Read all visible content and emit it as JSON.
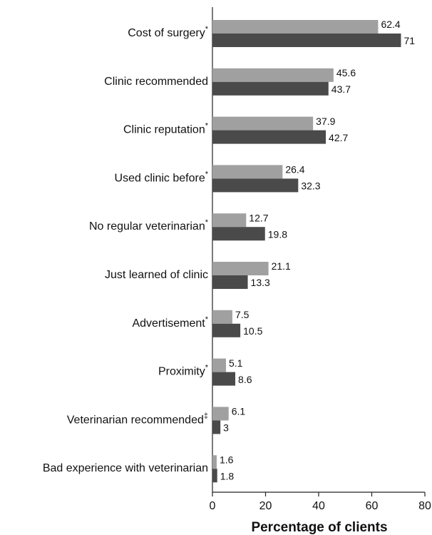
{
  "chart_data": {
    "type": "hbar",
    "categories": [
      "Cost of surgery",
      "Clinic recommended",
      "Clinic reputation",
      "Used clinic before",
      "No regular veterinarian",
      "Just learned of clinic",
      "Advertisement",
      "Proximity",
      "Veterinarian recommended",
      "Bad experience with veterinarian"
    ],
    "category_marks": [
      "*",
      null,
      "*",
      "*",
      "*",
      null,
      "*",
      "*",
      "‡",
      null
    ],
    "series": [
      {
        "color": "#a0a0a0",
        "values": [
          62.4,
          45.6,
          37.9,
          26.4,
          12.7,
          21.1,
          7.5,
          5.1,
          6.1,
          1.6
        ]
      },
      {
        "color": "#4a4a4a",
        "values": [
          71,
          43.7,
          42.7,
          32.3,
          19.8,
          13.3,
          10.5,
          8.6,
          3,
          1.8
        ]
      }
    ],
    "xlabel": "Percentage of clients",
    "xlim": [
      0,
      80
    ],
    "xticks": [
      0,
      20,
      40,
      60,
      80
    ]
  }
}
